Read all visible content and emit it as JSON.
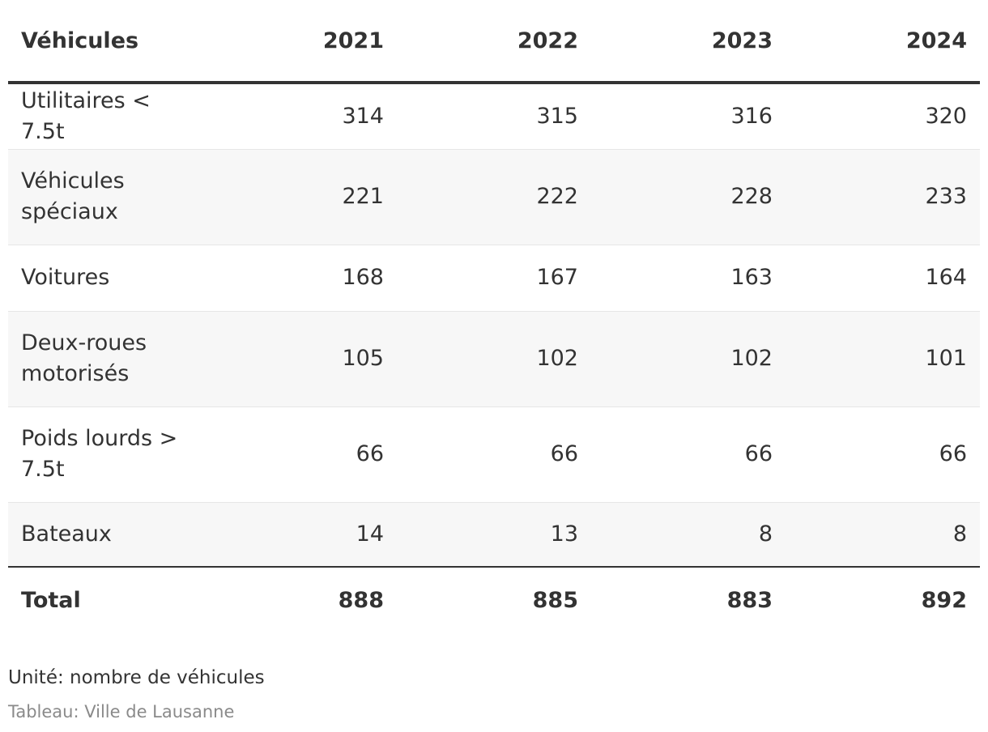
{
  "chart_data": {
    "type": "table",
    "columns": [
      "Véhicules",
      "2021",
      "2022",
      "2023",
      "2024"
    ],
    "rows": [
      {
        "label": "Utilitaires < 7.5t",
        "values": [
          "314",
          "315",
          "316",
          "320"
        ]
      },
      {
        "label": "Véhicules spéciaux",
        "values": [
          "221",
          "222",
          "228",
          "233"
        ]
      },
      {
        "label": "Voitures",
        "values": [
          "168",
          "167",
          "163",
          "164"
        ]
      },
      {
        "label": "Deux-roues motorisés",
        "values": [
          "105",
          "102",
          "102",
          "101"
        ]
      },
      {
        "label": "Poids lourds > 7.5t",
        "values": [
          "66",
          "66",
          "66",
          "66"
        ]
      },
      {
        "label": "Bateaux",
        "values": [
          "14",
          "13",
          "8",
          "8"
        ]
      }
    ],
    "total": {
      "label": "Total",
      "values": [
        "888",
        "885",
        "883",
        "892"
      ]
    }
  },
  "footer": {
    "unit": "Unité: nombre de véhicules",
    "source": "Tableau: Ville de Lausanne"
  }
}
